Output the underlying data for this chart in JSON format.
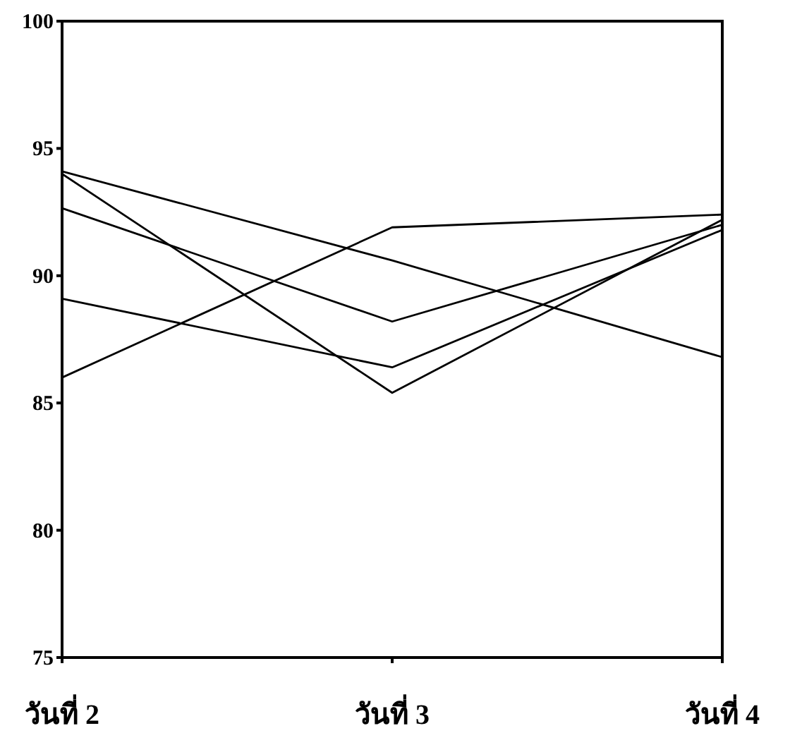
{
  "chart_data": {
    "type": "line",
    "categories": [
      "วันที่ 2",
      "วันที่ 3",
      "วันที่ 4"
    ],
    "series": [
      {
        "color": "#000000",
        "values": [
          94.1,
          90.6,
          86.8
        ]
      },
      {
        "color": "#000000",
        "values": [
          94.0,
          85.4,
          92.2
        ]
      },
      {
        "color": "#000000",
        "values": [
          92.65,
          88.2,
          92.0
        ]
      },
      {
        "color": "#000000",
        "values": [
          89.1,
          86.4,
          91.8
        ]
      },
      {
        "color": "#000000",
        "values": [
          86.0,
          91.9,
          92.4
        ]
      }
    ],
    "ylim": [
      75,
      100
    ],
    "yticks": [
      75,
      80,
      85,
      90,
      95,
      100
    ],
    "grid": false,
    "marker": "none",
    "line_style": "solid"
  }
}
